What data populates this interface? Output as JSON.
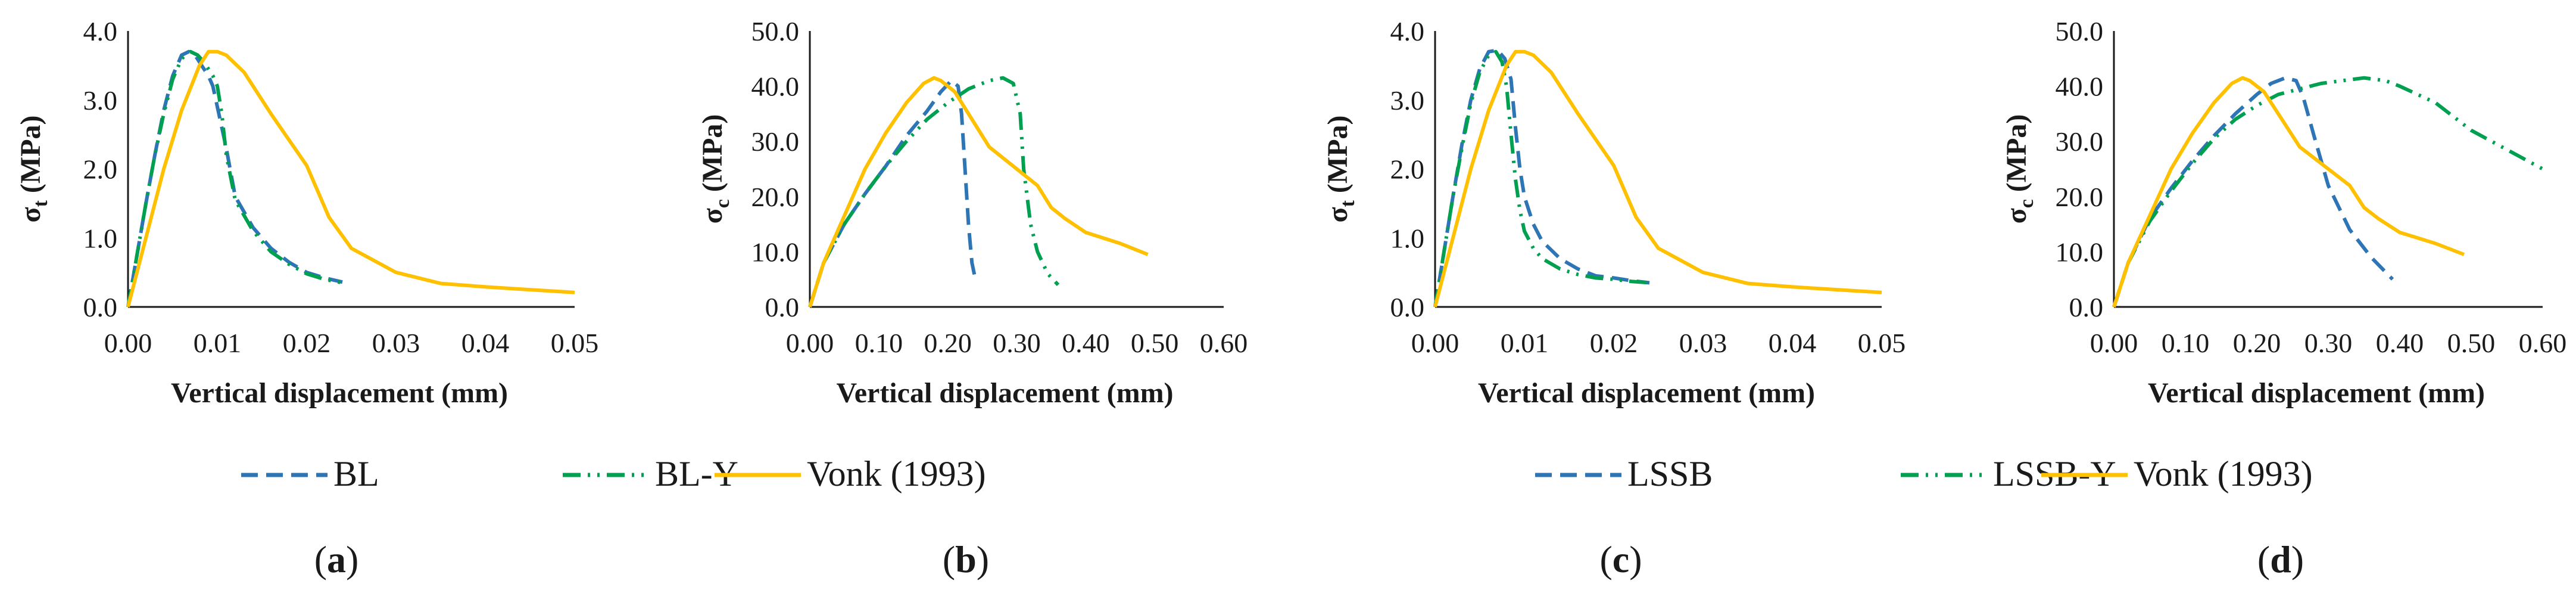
{
  "colors": {
    "dash": "#2E75B6",
    "dashdot": "#00A050",
    "solid": "#FFC000",
    "axis": "#1a1a1a"
  },
  "chart_data": [
    {
      "type": "line",
      "panel_label": "a",
      "xlabel": "Vertical displacement (mm)",
      "ylabel_main": "σ",
      "ylabel_sub": "t",
      "ylabel_unit": " (MPa)",
      "xlim": [
        0,
        0.05
      ],
      "ylim": [
        0,
        4.0
      ],
      "xticks": [
        "0.00",
        "0.01",
        "0.02",
        "0.03",
        "0.04",
        "0.05"
      ],
      "xtick_values": [
        0,
        0.01,
        0.02,
        0.03,
        0.04,
        0.05
      ],
      "yticks": [
        "0.0",
        "1.0",
        "2.0",
        "3.0",
        "4.0"
      ],
      "ytick_values": [
        0,
        1,
        2,
        3,
        4
      ],
      "series": [
        {
          "name": "BL",
          "style": "dash",
          "x": [
            0,
            0.001,
            0.002,
            0.003,
            0.004,
            0.005,
            0.006,
            0.0068,
            0.0075,
            0.008,
            0.0085,
            0.009,
            0.0095,
            0.01,
            0.011,
            0.012,
            0.014,
            0.016,
            0.018,
            0.02,
            0.022,
            0.024
          ],
          "y": [
            0,
            0.75,
            1.5,
            2.2,
            2.85,
            3.35,
            3.65,
            3.7,
            3.65,
            3.55,
            3.45,
            3.35,
            3.2,
            2.9,
            2.3,
            1.6,
            1.15,
            0.85,
            0.65,
            0.5,
            0.42,
            0.36
          ]
        },
        {
          "name": "BL-Y",
          "style": "dashdot",
          "x": [
            0,
            0.001,
            0.002,
            0.003,
            0.004,
            0.005,
            0.006,
            0.007,
            0.0078,
            0.0085,
            0.009,
            0.0095,
            0.01,
            0.0105,
            0.011,
            0.012,
            0.014,
            0.016,
            0.018,
            0.02,
            0.022,
            0.024
          ],
          "y": [
            0,
            0.75,
            1.5,
            2.2,
            2.8,
            3.3,
            3.6,
            3.7,
            3.65,
            3.55,
            3.45,
            3.35,
            3.2,
            2.8,
            2.2,
            1.55,
            1.1,
            0.8,
            0.62,
            0.48,
            0.4,
            0.35
          ]
        },
        {
          "name": "Vonk (1993)",
          "style": "solid",
          "x": [
            0,
            0.002,
            0.004,
            0.006,
            0.008,
            0.009,
            0.01,
            0.011,
            0.013,
            0.016,
            0.02,
            0.0225,
            0.025,
            0.03,
            0.035,
            0.04,
            0.045,
            0.05
          ],
          "y": [
            0,
            1.0,
            2.0,
            2.85,
            3.5,
            3.7,
            3.7,
            3.65,
            3.4,
            2.8,
            2.05,
            1.3,
            0.85,
            0.5,
            0.34,
            0.29,
            0.25,
            0.21
          ]
        }
      ]
    },
    {
      "type": "line",
      "panel_label": "b",
      "xlabel": "Vertical displacement (mm)",
      "ylabel_main": "σ",
      "ylabel_sub": "c",
      "ylabel_unit": " (MPa)",
      "xlim": [
        0,
        0.6
      ],
      "ylim": [
        0,
        50
      ],
      "xticks": [
        "0.00",
        "0.10",
        "0.20",
        "0.30",
        "0.40",
        "0.50",
        "0.60"
      ],
      "xtick_values": [
        0,
        0.1,
        0.2,
        0.3,
        0.4,
        0.5,
        0.6
      ],
      "yticks": [
        "0.0",
        "10.0",
        "20.0",
        "30.0",
        "40.0",
        "50.0"
      ],
      "ytick_values": [
        0,
        10,
        20,
        30,
        40,
        50
      ],
      "series": [
        {
          "name": "BL",
          "style": "dash",
          "x": [
            0,
            0.02,
            0.05,
            0.08,
            0.11,
            0.14,
            0.17,
            0.19,
            0.205,
            0.215,
            0.22,
            0.225,
            0.23,
            0.235,
            0.24
          ],
          "y": [
            0,
            8,
            15,
            20.5,
            25.5,
            31,
            35.5,
            39,
            41,
            40,
            35,
            25,
            15,
            8,
            5
          ]
        },
        {
          "name": "BL-Y",
          "style": "dashdot",
          "x": [
            0,
            0.02,
            0.05,
            0.08,
            0.11,
            0.14,
            0.17,
            0.2,
            0.23,
            0.26,
            0.28,
            0.295,
            0.305,
            0.31,
            0.32,
            0.33,
            0.345,
            0.36
          ],
          "y": [
            0,
            8,
            15,
            20.5,
            25.5,
            30,
            34,
            37,
            39.5,
            41,
            41.5,
            40.5,
            35,
            25,
            15,
            10,
            6,
            4
          ]
        },
        {
          "name": "Vonk (1993)",
          "style": "solid",
          "x": [
            0,
            0.02,
            0.05,
            0.08,
            0.11,
            0.14,
            0.165,
            0.18,
            0.19,
            0.21,
            0.23,
            0.26,
            0.3,
            0.33,
            0.35,
            0.37,
            0.4,
            0.45,
            0.49
          ],
          "y": [
            0,
            8,
            16.5,
            25,
            31.5,
            37,
            40.5,
            41.5,
            41,
            39,
            35,
            29,
            25,
            22,
            18,
            16,
            13.5,
            11.5,
            9.5
          ]
        }
      ]
    },
    {
      "type": "line",
      "panel_label": "c",
      "xlabel": "Vertical displacement (mm)",
      "ylabel_main": "σ",
      "ylabel_sub": "t",
      "ylabel_unit": " (MPa)",
      "xlim": [
        0,
        0.05
      ],
      "ylim": [
        0,
        4.0
      ],
      "xticks": [
        "0.00",
        "0.01",
        "0.02",
        "0.03",
        "0.04",
        "0.05"
      ],
      "xtick_values": [
        0,
        0.01,
        0.02,
        0.03,
        0.04,
        0.05
      ],
      "yticks": [
        "0.0",
        "1.0",
        "2.0",
        "3.0",
        "4.0"
      ],
      "ytick_values": [
        0,
        1,
        2,
        3,
        4
      ],
      "series": [
        {
          "name": "LSSB",
          "style": "dash",
          "x": [
            0,
            0.001,
            0.002,
            0.003,
            0.004,
            0.005,
            0.006,
            0.007,
            0.0078,
            0.0085,
            0.009,
            0.0095,
            0.01,
            0.011,
            0.012,
            0.014,
            0.016,
            0.018,
            0.02,
            0.022,
            0.024
          ],
          "y": [
            0,
            0.8,
            1.6,
            2.35,
            3.0,
            3.45,
            3.7,
            3.72,
            3.6,
            3.3,
            2.6,
            2.0,
            1.6,
            1.2,
            0.95,
            0.7,
            0.55,
            0.45,
            0.42,
            0.38,
            0.35
          ]
        },
        {
          "name": "LSSB-Y",
          "style": "dashdot",
          "x": [
            0,
            0.001,
            0.002,
            0.003,
            0.004,
            0.005,
            0.006,
            0.0068,
            0.0075,
            0.008,
            0.0085,
            0.009,
            0.0095,
            0.01,
            0.011,
            0.012,
            0.014,
            0.016,
            0.018,
            0.02,
            0.022,
            0.024
          ],
          "y": [
            0,
            0.8,
            1.6,
            2.3,
            2.95,
            3.4,
            3.65,
            3.7,
            3.55,
            3.2,
            2.5,
            1.85,
            1.4,
            1.1,
            0.85,
            0.7,
            0.55,
            0.47,
            0.42,
            0.4,
            0.37,
            0.35
          ]
        },
        {
          "name": "Vonk (1993)",
          "style": "solid",
          "x": [
            0,
            0.002,
            0.004,
            0.006,
            0.008,
            0.009,
            0.01,
            0.011,
            0.013,
            0.016,
            0.02,
            0.0225,
            0.025,
            0.03,
            0.035,
            0.04,
            0.045,
            0.05
          ],
          "y": [
            0,
            1.0,
            2.0,
            2.85,
            3.5,
            3.7,
            3.7,
            3.65,
            3.4,
            2.8,
            2.05,
            1.3,
            0.85,
            0.5,
            0.34,
            0.29,
            0.25,
            0.21
          ]
        }
      ]
    },
    {
      "type": "line",
      "panel_label": "d",
      "xlabel": "Vertical displacement (mm)",
      "ylabel_main": "σ",
      "ylabel_sub": "c",
      "ylabel_unit": " (MPa)",
      "xlim": [
        0,
        0.6
      ],
      "ylim": [
        0,
        50
      ],
      "xticks": [
        "0.00",
        "0.10",
        "0.20",
        "0.30",
        "0.40",
        "0.50",
        "0.60"
      ],
      "xtick_values": [
        0,
        0.1,
        0.2,
        0.3,
        0.4,
        0.5,
        0.6
      ],
      "yticks": [
        "0.0",
        "10.0",
        "20.0",
        "30.0",
        "40.0",
        "50.0"
      ],
      "ytick_values": [
        0,
        10,
        20,
        30,
        40,
        50
      ],
      "series": [
        {
          "name": "LSSB",
          "style": "dash",
          "x": [
            0,
            0.02,
            0.05,
            0.08,
            0.11,
            0.14,
            0.17,
            0.2,
            0.22,
            0.24,
            0.255,
            0.265,
            0.28,
            0.3,
            0.33,
            0.36,
            0.39
          ],
          "y": [
            0,
            8,
            16,
            21.5,
            26.5,
            31,
            35,
            38.5,
            40.5,
            41.5,
            41,
            38,
            31,
            22,
            14,
            9,
            5
          ]
        },
        {
          "name": "LSSB-Y",
          "style": "dashdot",
          "x": [
            0,
            0.02,
            0.05,
            0.08,
            0.11,
            0.14,
            0.17,
            0.2,
            0.23,
            0.26,
            0.29,
            0.32,
            0.35,
            0.38,
            0.4,
            0.45,
            0.5,
            0.55,
            0.6
          ],
          "y": [
            0,
            8,
            15.5,
            21,
            26,
            30.5,
            34,
            36.5,
            38.5,
            39.5,
            40.5,
            41,
            41.5,
            41,
            40,
            37,
            32,
            28.5,
            25
          ]
        },
        {
          "name": "Vonk (1993)",
          "style": "solid",
          "x": [
            0,
            0.02,
            0.05,
            0.08,
            0.11,
            0.14,
            0.165,
            0.18,
            0.19,
            0.21,
            0.23,
            0.26,
            0.3,
            0.33,
            0.35,
            0.37,
            0.4,
            0.45,
            0.49
          ],
          "y": [
            0,
            8,
            16.5,
            25,
            31.5,
            37,
            40.5,
            41.5,
            41,
            39,
            35,
            29,
            25,
            22,
            18,
            16,
            13.5,
            11.5,
            9.5
          ]
        }
      ]
    }
  ],
  "legends": [
    {
      "items": [
        {
          "label": "BL",
          "style": "dash"
        },
        {
          "label": "BL-Y",
          "style": "dashdot"
        },
        {
          "label": "Vonk (1993)",
          "style": "solid"
        }
      ]
    },
    {
      "items": [
        {
          "label": "LSSB",
          "style": "dash"
        },
        {
          "label": "LSSB-Y",
          "style": "dashdot"
        },
        {
          "label": "Vonk (1993)",
          "style": "solid"
        }
      ]
    }
  ]
}
